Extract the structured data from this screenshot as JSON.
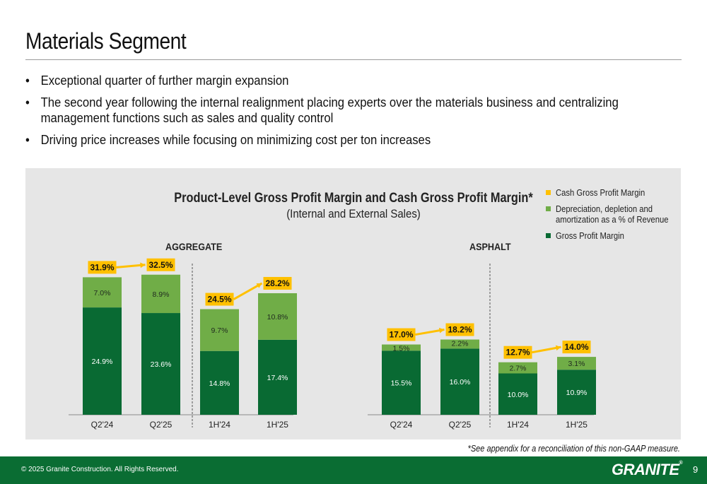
{
  "page": {
    "title": "Materials Segment",
    "bullets": [
      "Exceptional quarter of further margin expansion",
      "The second year following the internal realignment placing experts over the materials business and centralizing management functions such as sales and quality control",
      "Driving price increases while focusing on minimizing cost per ton increases"
    ],
    "footnote": "*See appendix for a reconciliation of this non-GAAP measure.",
    "copyright": "© 2025 Granite Construction. All Rights Reserved.",
    "logo": "GRANITE",
    "page_number": "9"
  },
  "colors": {
    "gross_profit": "#096a33",
    "dda": "#70ad47",
    "cash_gp": "#ffc000",
    "panel": "#e6e6e6",
    "footer": "#0a6d33"
  },
  "chart_data": {
    "type": "bar",
    "stacked": true,
    "title": "Product-Level Gross Profit Margin and Cash Gross Profit Margin*",
    "subtitle": "(Internal and External Sales)",
    "legend": [
      "Cash Gross Profit Margin",
      "Depreciation, depletion and amortization as a % of Revenue",
      "Gross Profit Margin"
    ],
    "legend_position": "top-right",
    "panels": [
      {
        "name": "AGGREGATE",
        "categories": [
          "Q2'24",
          "Q2'25",
          "1H'24",
          "1H'25"
        ],
        "series": [
          {
            "name": "Gross Profit Margin",
            "values": [
              24.9,
              23.6,
              14.8,
              17.4
            ],
            "labels": [
              "24.9%",
              "23.6%",
              "14.8%",
              "17.4%"
            ]
          },
          {
            "name": "Depreciation, depletion and amortization as a % of Revenue",
            "values": [
              7.0,
              8.9,
              9.7,
              10.8
            ],
            "labels": [
              "7.0%",
              "8.9%",
              "9.7%",
              "10.8%"
            ]
          }
        ],
        "cash_gross_profit_margin": {
          "values": [
            31.9,
            32.5,
            24.5,
            28.2
          ],
          "labels": [
            "31.9%",
            "32.5%",
            "24.5%",
            "28.2%"
          ]
        }
      },
      {
        "name": "ASPHALT",
        "categories": [
          "Q2'24",
          "Q2'25",
          "1H'24",
          "1H'25"
        ],
        "series": [
          {
            "name": "Gross Profit Margin",
            "values": [
              15.5,
              16.0,
              10.0,
              10.9
            ],
            "labels": [
              "15.5%",
              "16.0%",
              "10.0%",
              "10.9%"
            ]
          },
          {
            "name": "Depreciation, depletion and amortization as a % of Revenue",
            "values": [
              1.5,
              2.2,
              2.7,
              3.1
            ],
            "labels": [
              "1.5%",
              "2.2%",
              "2.7%",
              "3.1%"
            ]
          }
        ],
        "cash_gross_profit_margin": {
          "values": [
            17.0,
            18.2,
            12.7,
            14.0
          ],
          "labels": [
            "17.0%",
            "18.2%",
            "12.7%",
            "14.0%"
          ]
        }
      }
    ]
  }
}
